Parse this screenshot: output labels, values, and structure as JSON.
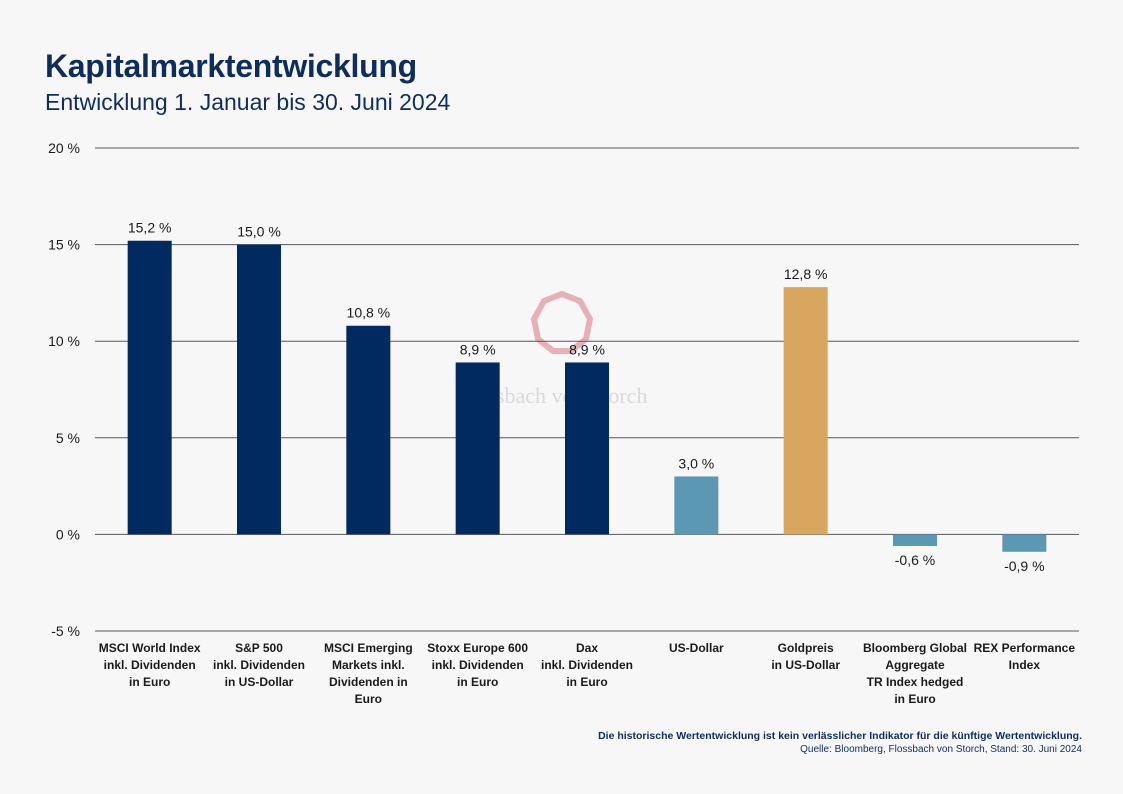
{
  "header": {
    "title": "Kapitalmarktentwicklung",
    "subtitle": "Entwicklung 1. Januar bis 30. Juni 2024"
  },
  "footer": {
    "disclaimer": "Die historische Wertentwicklung ist kein verlässlicher Indikator für die künftige Wertentwicklung.",
    "source": "Quelle: Bloomberg, Flossbach von Storch, Stand: 30. Juni 2024"
  },
  "watermark": {
    "text": "Flossbach von Storch",
    "color": "#e4a3aa"
  },
  "colors": {
    "navy": "#002a60",
    "teal": "#5b98b3",
    "gold": "#d9a660",
    "grid": "#595959"
  },
  "chart_data": {
    "type": "bar",
    "ylim": [
      -5,
      20
    ],
    "ytick_values": [
      -5,
      0,
      5,
      10,
      15,
      20
    ],
    "ytick_labels": [
      "-5 %",
      "0 %",
      "5 %",
      "10 %",
      "15 %",
      "20 %"
    ],
    "grid": true,
    "categories": [
      [
        "MSCI World Index",
        "inkl. Dividenden",
        "in Euro"
      ],
      [
        "S&P 500",
        "inkl. Dividenden",
        "in US-Dollar"
      ],
      [
        "MSCI Emerging",
        "Markets inkl.",
        "Dividenden in",
        "Euro"
      ],
      [
        "Stoxx Europe 600",
        "inkl. Dividenden",
        "in Euro"
      ],
      [
        "Dax",
        "inkl. Dividenden",
        "in Euro"
      ],
      [
        "US-Dollar"
      ],
      [
        "Goldpreis",
        "in US-Dollar"
      ],
      [
        "Bloomberg Global",
        "Aggregate",
        "TR Index hedged",
        "in Euro"
      ],
      [
        "REX Performance",
        "Index"
      ]
    ],
    "values": [
      15.2,
      15.0,
      10.8,
      8.9,
      8.9,
      3.0,
      12.8,
      -0.6,
      -0.9
    ],
    "value_labels": [
      "15,2 %",
      "15,0 %",
      "10,8 %",
      "8,9 %",
      "8,9 %",
      "3,0 %",
      "12,8 %",
      "-0,6 %",
      "-0,9 %"
    ],
    "bar_colors": [
      "#002a60",
      "#002a60",
      "#002a60",
      "#002a60",
      "#002a60",
      "#5b98b3",
      "#d9a660",
      "#5b98b3",
      "#5b98b3"
    ]
  }
}
